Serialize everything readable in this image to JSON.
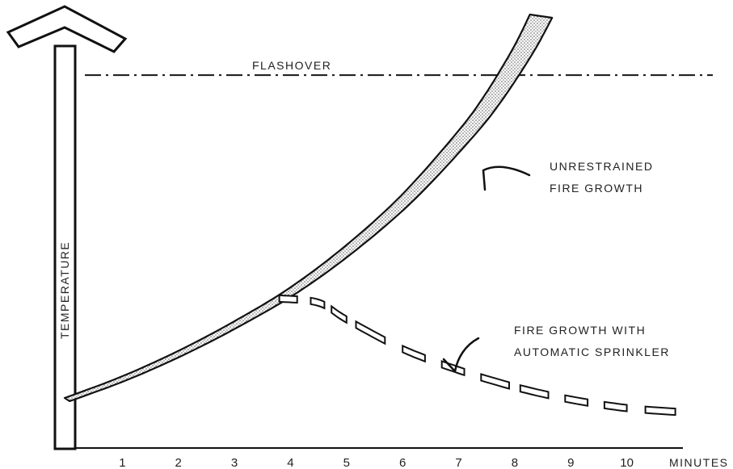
{
  "chart_data": {
    "type": "line",
    "title": "",
    "xlabel": "MINUTES",
    "ylabel": "TEMPERATURE",
    "x_ticks": [
      "1",
      "2",
      "3",
      "4",
      "5",
      "6",
      "7",
      "8",
      "9",
      "10"
    ],
    "xlim": [
      0,
      11
    ],
    "ylim": [
      0,
      100
    ],
    "grid": false,
    "reference_line": {
      "label": "FLASHOVER",
      "y": 86,
      "style": "dash-dot"
    },
    "series": [
      {
        "name": "UNRESTRAINED FIRE GROWTH",
        "style": "stippled-band",
        "x": [
          0,
          1,
          2,
          3,
          4,
          5,
          6,
          7,
          7.5,
          8,
          8.3
        ],
        "y": [
          9,
          14,
          20,
          27,
          35,
          45,
          57,
          72,
          81,
          92,
          100
        ]
      },
      {
        "name": "FIRE GROWTH WITH AUTOMATIC SPRINKLER",
        "style": "dashed-band",
        "x": [
          3.8,
          4.5,
          5,
          6,
          7,
          8,
          9,
          10,
          11
        ],
        "y": [
          33,
          32,
          28,
          21,
          16,
          12,
          9,
          7,
          6
        ]
      }
    ],
    "annotations": [
      {
        "text_lines": [
          "UNRESTRAINED",
          "FIRE GROWTH"
        ],
        "points_to": "UNRESTRAINED FIRE GROWTH"
      },
      {
        "text_lines": [
          "FIRE GROWTH WITH",
          "AUTOMATIC SPRINKLER"
        ],
        "points_to": "FIRE GROWTH WITH AUTOMATIC SPRINKLER"
      }
    ]
  }
}
